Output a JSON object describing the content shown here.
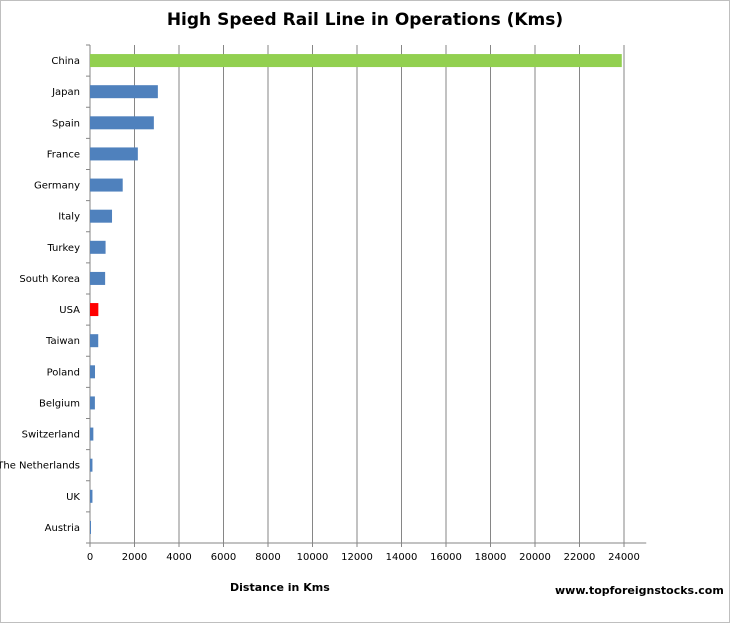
{
  "chart_data": {
    "type": "bar",
    "orientation": "horizontal",
    "title": "High Speed Rail Line in Operations (Kms)",
    "xlabel": "Distance in Kms",
    "ylabel": "",
    "categories": [
      "China",
      "Japan",
      "Spain",
      "France",
      "Germany",
      "Italy",
      "Turkey",
      "South Korea",
      "USA",
      "Taiwan",
      "Poland",
      "Belgium",
      "Switzerland",
      "The Netherlands",
      "UK",
      "Austria"
    ],
    "values": [
      23900,
      3050,
      2870,
      2150,
      1470,
      990,
      700,
      680,
      375,
      370,
      225,
      220,
      150,
      110,
      110,
      30
    ],
    "colors": [
      "#92d050",
      "#4f81bd",
      "#4f81bd",
      "#4f81bd",
      "#4f81bd",
      "#4f81bd",
      "#4f81bd",
      "#4f81bd",
      "#ff0000",
      "#4f81bd",
      "#4f81bd",
      "#4f81bd",
      "#4f81bd",
      "#4f81bd",
      "#4f81bd",
      "#4f81bd"
    ],
    "xlim": [
      0,
      25000
    ],
    "xticks": [
      0,
      2000,
      4000,
      6000,
      8000,
      10000,
      12000,
      14000,
      16000,
      18000,
      20000,
      22000,
      24000
    ],
    "grid": true,
    "legend": "none"
  },
  "source": "www.topforeignstocks.com"
}
